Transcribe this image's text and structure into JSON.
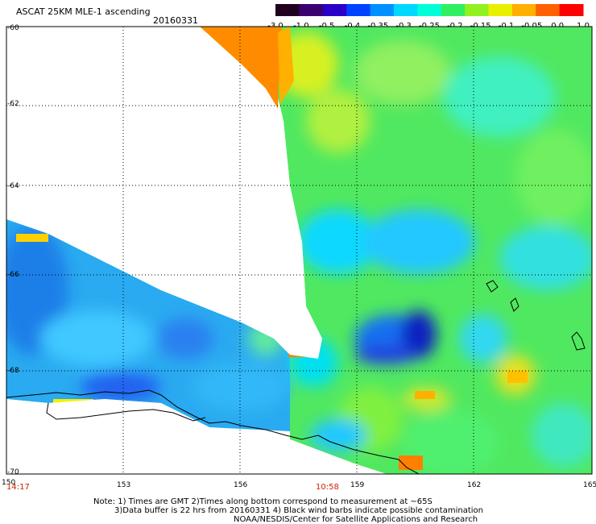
{
  "title": "ASCAT 25KM MLE-1 ascending",
  "date": "20160331",
  "colorbar": {
    "labels": [
      "-3.0",
      "-1.0",
      "-0.5",
      "-0.4",
      "-0.35",
      "-0.3",
      "-0.25",
      "-0.2",
      "-0.15",
      "-0.1",
      "-0.05",
      "0.0",
      "1.0"
    ],
    "colors": [
      "#200020",
      "#3a0070",
      "#2a00c8",
      "#0040ff",
      "#0090ff",
      "#00d8ff",
      "#00ffd8",
      "#30f060",
      "#90f020",
      "#e8f000",
      "#ffb000",
      "#ff6000",
      "#ff0000"
    ]
  },
  "axes": {
    "lat_labels": [
      "-60",
      "-62",
      "-64",
      "-66",
      "-68",
      "-70"
    ],
    "lon_labels": [
      "150",
      "153",
      "156",
      "159",
      "162",
      "165"
    ]
  },
  "times": {
    "left": "14:17",
    "mid": "10:58"
  },
  "notes": {
    "line1": "Note: 1) Times are GMT 2)Times along bottom correspond to measurement at ~65S",
    "line2": "3)Data buffer is 22 hrs from 20160331 4) Black wind barbs indicate possible contamination",
    "line3": "NOAA/NESDIS/Center for Satellite Applications and Research"
  }
}
